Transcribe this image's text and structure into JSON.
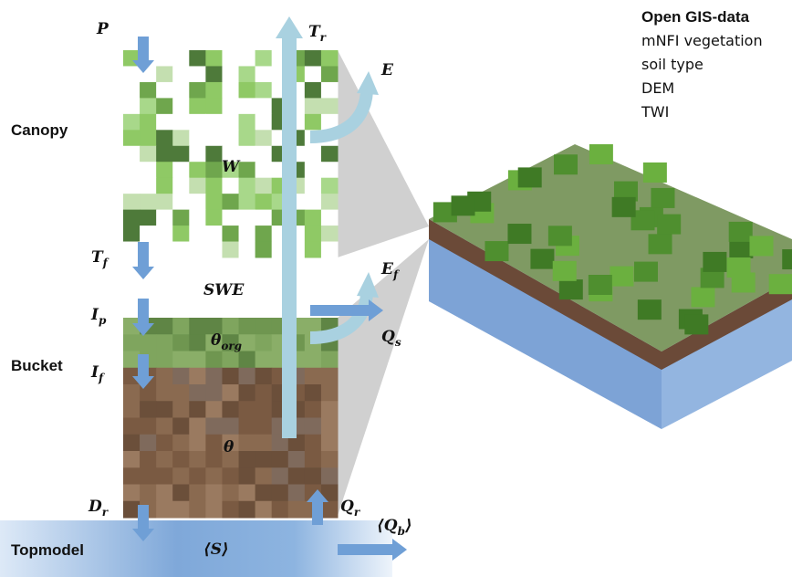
{
  "panels": {
    "canopy": "Canopy",
    "bucket": "Bucket",
    "topmodel": "Topmodel"
  },
  "gis": {
    "title": "Open GIS-data",
    "items": [
      "mNFI vegetation",
      "soil type",
      "DEM",
      "TWI"
    ]
  },
  "symbols": [
    {
      "base": "P"
    },
    {
      "base": "T",
      "sub": "r"
    },
    {
      "base": "E"
    },
    {
      "base": "W"
    },
    {
      "base": "T",
      "sub": "f"
    },
    {
      "base": "SWE"
    },
    {
      "base": "E",
      "sub": "f"
    },
    {
      "base": "I",
      "sub": "p"
    },
    {
      "base": "θ",
      "sub": "org"
    },
    {
      "base": "Q",
      "sub": "s"
    },
    {
      "base": "I",
      "sub": "f"
    },
    {
      "base": "θ"
    },
    {
      "base": "D",
      "sub": "r"
    },
    {
      "base": "Q",
      "sub": "r"
    },
    {
      "base": "⟨Q",
      "sub": "b",
      "end": "⟩"
    },
    {
      "base": "⟨S⟩"
    }
  ]
}
